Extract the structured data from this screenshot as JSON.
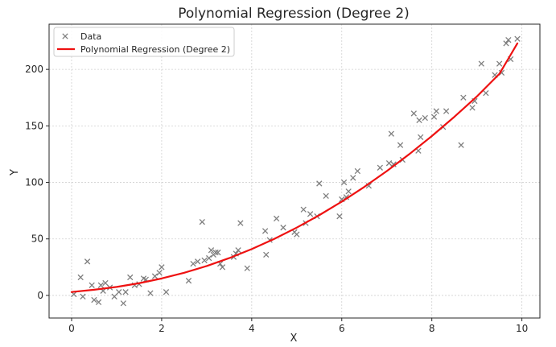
{
  "chart_data": {
    "type": "scatter",
    "title": "Polynomial Regression (Degree 2)",
    "xlabel": "X",
    "ylabel": "Y",
    "xlim": [
      -0.5,
      10.4
    ],
    "ylim": [
      -20,
      240
    ],
    "x_ticks": [
      0,
      2,
      4,
      6,
      8,
      10
    ],
    "y_ticks": [
      0,
      50,
      100,
      150,
      200
    ],
    "grid": true,
    "legend_position": "top-left",
    "series": [
      {
        "name": "Data",
        "kind": "scatter",
        "marker": "x",
        "color": "#7f7f7f",
        "x": [
          0.05,
          0.2,
          0.25,
          0.35,
          0.45,
          0.5,
          0.6,
          0.65,
          0.7,
          0.75,
          0.85,
          0.95,
          1.05,
          1.15,
          1.2,
          1.3,
          1.4,
          1.5,
          1.6,
          1.65,
          1.75,
          1.85,
          1.95,
          2.0,
          2.1,
          2.6,
          2.7,
          2.8,
          2.9,
          2.95,
          3.05,
          3.1,
          3.15,
          3.2,
          3.25,
          3.3,
          3.35,
          3.6,
          3.65,
          3.7,
          3.75,
          3.9,
          4.3,
          4.32,
          4.4,
          4.55,
          4.7,
          4.95,
          5.0,
          5.15,
          5.2,
          5.3,
          5.45,
          5.5,
          5.65,
          5.95,
          6.0,
          6.05,
          6.1,
          6.15,
          6.25,
          6.35,
          6.6,
          6.85,
          7.05,
          7.1,
          7.15,
          7.3,
          7.35,
          7.6,
          7.7,
          7.72,
          7.75,
          7.85,
          8.05,
          8.1,
          8.25,
          8.32,
          8.65,
          8.7,
          8.9,
          8.95,
          9.1,
          9.2,
          9.4,
          9.5,
          9.55,
          9.65,
          9.7,
          9.75,
          9.9
        ],
        "y": [
          1,
          16,
          -1,
          30,
          9,
          -4,
          -6,
          9,
          4,
          11,
          7,
          -1,
          3,
          -7,
          3,
          16,
          9,
          10,
          15,
          14,
          2,
          17,
          20,
          25,
          3,
          13,
          28,
          30,
          65,
          31,
          33,
          40,
          36,
          38,
          38,
          28,
          25,
          34,
          37,
          40,
          64,
          24,
          57,
          36,
          49,
          68,
          60,
          56,
          54,
          76,
          64,
          72,
          70,
          99,
          88,
          70,
          85,
          100,
          87,
          92,
          104,
          110,
          97,
          113,
          117,
          143,
          116,
          133,
          120,
          161,
          128,
          155,
          140,
          157,
          158,
          163,
          149,
          163,
          133,
          175,
          166,
          172,
          205,
          179,
          195,
          205,
          197,
          223,
          226,
          209,
          227
        ]
      },
      {
        "name": "Polynomial Regression (Degree 2)",
        "kind": "line",
        "color": "#ee1111",
        "x": [
          0.0,
          0.5,
          1.0,
          1.5,
          2.0,
          2.5,
          3.0,
          3.5,
          4.0,
          4.5,
          5.0,
          5.5,
          6.0,
          6.5,
          7.0,
          7.5,
          8.0,
          8.5,
          9.0,
          9.5,
          9.9
        ],
        "y": [
          3,
          5,
          7.5,
          10.8,
          15,
          20,
          26,
          33,
          41,
          50,
          60,
          71,
          83,
          96,
          110,
          125,
          141,
          158,
          176,
          196,
          223
        ]
      }
    ]
  }
}
